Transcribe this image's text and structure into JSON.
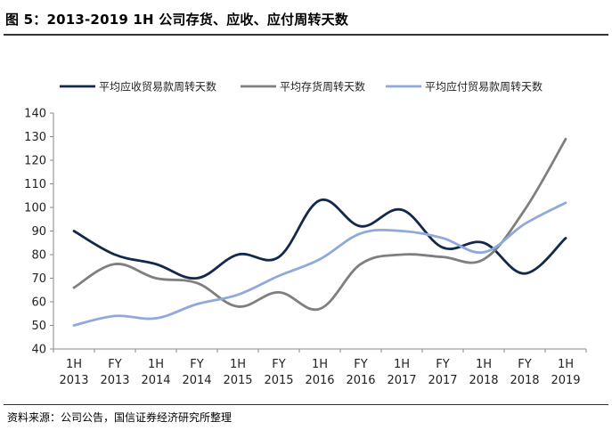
{
  "title": "图 5：2013-2019 1H 公司存货、应收、应付周转天数",
  "source": "资料来源：公司公告，国信证券经济研究所整理",
  "chart_data": {
    "type": "line",
    "categories": [
      [
        "1H",
        "2013"
      ],
      [
        "FY",
        "2013"
      ],
      [
        "1H",
        "2014"
      ],
      [
        "FY",
        "2014"
      ],
      [
        "1H",
        "2015"
      ],
      [
        "FY",
        "2015"
      ],
      [
        "1H",
        "2016"
      ],
      [
        "FY",
        "2016"
      ],
      [
        "1H",
        "2017"
      ],
      [
        "FY",
        "2017"
      ],
      [
        "1H",
        "2018"
      ],
      [
        "FY",
        "2018"
      ],
      [
        "1H",
        "2019"
      ]
    ],
    "ylim": [
      40,
      140
    ],
    "yticks": [
      40,
      50,
      60,
      70,
      80,
      90,
      100,
      110,
      120,
      130,
      140
    ],
    "grid": false,
    "legend_position": "top",
    "series": [
      {
        "name": "平均应收贸易款周转天数",
        "color": "#13294b",
        "values": [
          90,
          80,
          76,
          70,
          80,
          79,
          103,
          92,
          99,
          83,
          85,
          72,
          87
        ]
      },
      {
        "name": "平均存货周转天数",
        "color": "#7f7f7f",
        "values": [
          66,
          76,
          70,
          68,
          58,
          64,
          57,
          76,
          80,
          79,
          78,
          99,
          129
        ]
      },
      {
        "name": "平均应付贸易款周转天数",
        "color": "#8fa9db",
        "values": [
          50,
          54,
          53,
          59,
          63,
          71,
          78,
          89,
          90,
          87,
          81,
          93,
          102
        ]
      }
    ]
  }
}
